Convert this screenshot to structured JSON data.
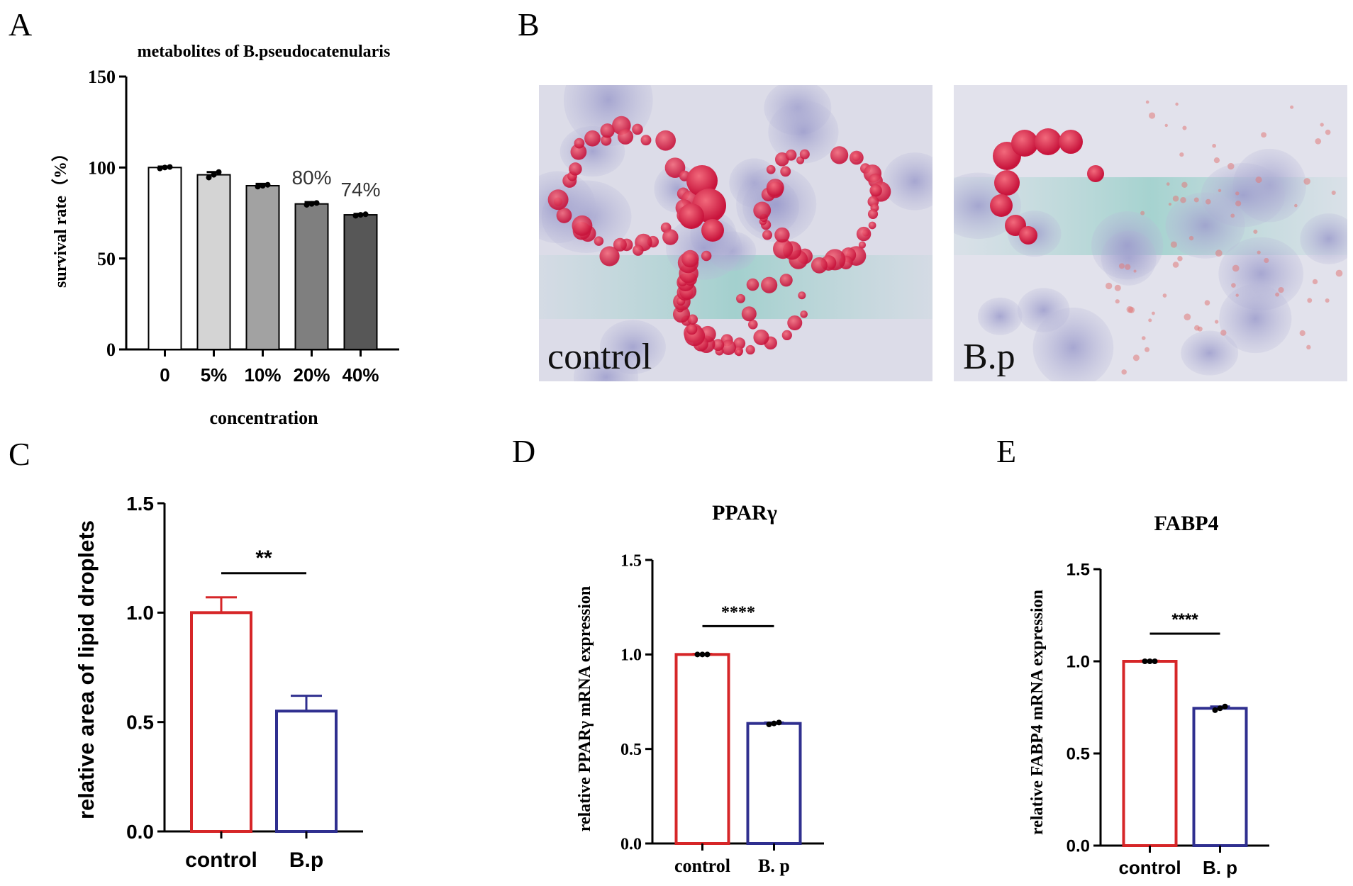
{
  "panel_labels": {
    "a": "A",
    "b": "B",
    "c": "C",
    "d": "D",
    "e": "E"
  },
  "micrographs": [
    {
      "label": "control"
    },
    {
      "label": "B.p"
    }
  ],
  "chart_data": [
    {
      "panel": "A",
      "type": "bar",
      "title": "metabolites of B.pseudocatenularis",
      "xlabel": "concentration",
      "ylabel": "survival rate（%）",
      "categories": [
        "0",
        "5%",
        "10%",
        "20%",
        "40%"
      ],
      "values": [
        100,
        96,
        90,
        80,
        74
      ],
      "error": [
        0.5,
        1.5,
        1.0,
        1.0,
        0.5
      ],
      "bar_colors": [
        "#ffffff",
        "#d4d4d4",
        "#a2a2a2",
        "#7f7f7f",
        "#575757"
      ],
      "points": [
        [
          99.5,
          100,
          100.3
        ],
        [
          94.5,
          96,
          97.5
        ],
        [
          89.5,
          90,
          90.5
        ],
        [
          79.5,
          80,
          80.5
        ],
        [
          73.5,
          74,
          74.3
        ]
      ],
      "annotations": [
        {
          "category": "20%",
          "text": "80%"
        },
        {
          "category": "40%",
          "text": "74%"
        }
      ],
      "ylim": [
        0,
        150
      ],
      "yticks": [
        "0",
        "50",
        "100",
        "150"
      ],
      "grid": false
    },
    {
      "panel": "C",
      "type": "bar",
      "title": "",
      "xlabel": "",
      "ylabel": "relative area of lipid droplets",
      "categories": [
        "control",
        "B.p"
      ],
      "values": [
        1.0,
        0.55
      ],
      "error": [
        0.07,
        0.07
      ],
      "bar_colors": [
        "#d62628",
        "#2f2f8f"
      ],
      "significance": "**",
      "ylim": [
        0,
        1.5
      ],
      "yticks": [
        "0.0",
        "0.5",
        "1.0",
        "1.5"
      ],
      "grid": false
    },
    {
      "panel": "D",
      "type": "bar",
      "title": "PPARγ",
      "xlabel": "",
      "ylabel": "relative PPARγ mRNA  expression",
      "categories": [
        "control",
        "B. p"
      ],
      "values": [
        1.0,
        0.635
      ],
      "error": [
        0.003,
        0.005
      ],
      "bar_colors": [
        "#d62628",
        "#2f2f8f"
      ],
      "points": [
        [
          1.0,
          1.0,
          1.0
        ],
        [
          0.63,
          0.635,
          0.64
        ]
      ],
      "significance": "****",
      "ylim": [
        0,
        1.5
      ],
      "yticks": [
        "0.0",
        "0.5",
        "1.0",
        "1.5"
      ],
      "grid": false
    },
    {
      "panel": "E",
      "type": "bar",
      "title": "FABP4",
      "xlabel": "",
      "ylabel": "relative FABP4 mRNA  expression",
      "categories": [
        "control",
        "B. p"
      ],
      "values": [
        1.0,
        0.745
      ],
      "error": [
        0.003,
        0.01
      ],
      "bar_colors": [
        "#d62628",
        "#2f2f8f"
      ],
      "points": [
        [
          1.0,
          1.0,
          1.0
        ],
        [
          0.735,
          0.745,
          0.755
        ]
      ],
      "significance": "****",
      "ylim": [
        0,
        1.5
      ],
      "yticks": [
        "0.0",
        "0.5",
        "1.0",
        "1.5"
      ],
      "grid": false
    }
  ]
}
